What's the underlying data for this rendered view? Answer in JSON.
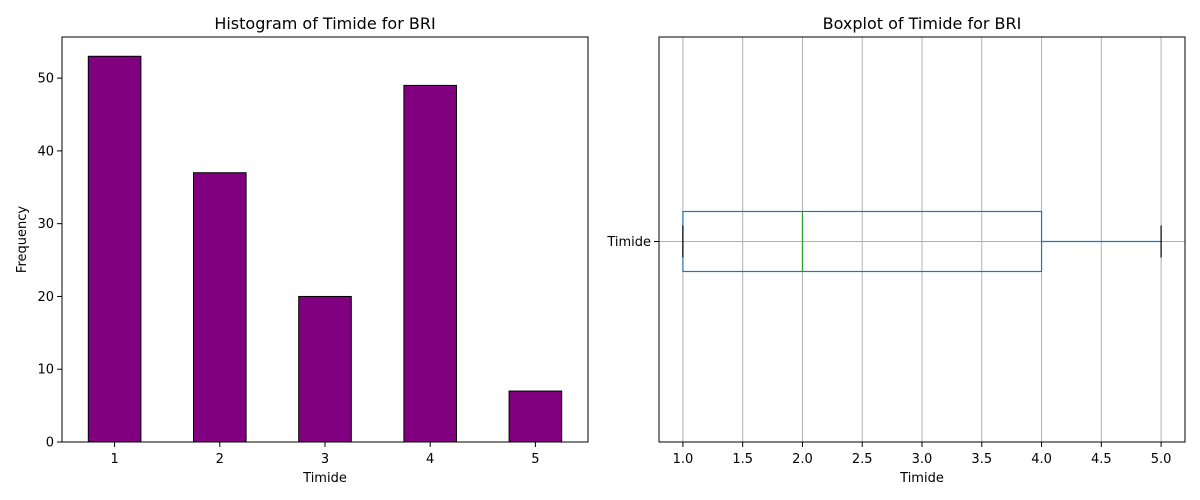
{
  "chart_data": [
    {
      "type": "bar",
      "title": "Histogram of Timide for BRI",
      "xlabel": "Timide",
      "ylabel": "Frequency",
      "categories": [
        "1",
        "2",
        "3",
        "4",
        "5"
      ],
      "values": [
        53,
        37,
        20,
        49,
        7
      ],
      "ylim": [
        0,
        55.65
      ],
      "yticks": [
        0,
        10,
        20,
        30,
        40,
        50
      ],
      "bar_color": "#800080",
      "edge_color": "#000000",
      "grid": false
    },
    {
      "type": "boxplot",
      "title": "Boxplot of Timide for BRI",
      "xlabel": "Timide",
      "category": "Timide",
      "orientation": "horizontal",
      "stats": {
        "whisker_low": 1.0,
        "q1": 1.0,
        "median": 2.0,
        "q3": 4.0,
        "whisker_high": 5.0
      },
      "xlim": [
        0.8,
        5.2
      ],
      "xticks": [
        "1.0",
        "1.5",
        "2.0",
        "2.5",
        "3.0",
        "3.5",
        "4.0",
        "4.5",
        "5.0"
      ],
      "box_color": "#1f77b4",
      "median_color": "#2ca02c",
      "cap_color": "#000000",
      "grid": true
    }
  ]
}
